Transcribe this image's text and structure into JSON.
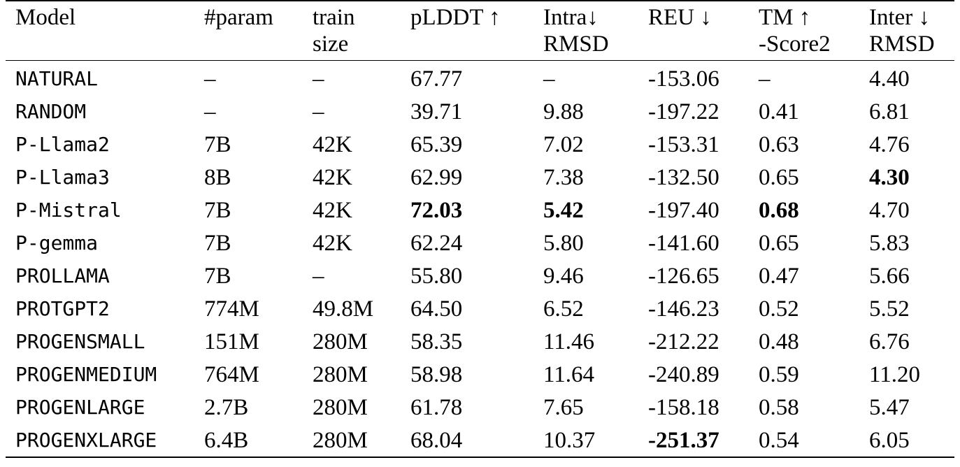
{
  "headers": [
    [
      "Model",
      ""
    ],
    [
      "#param",
      ""
    ],
    [
      "train",
      "size"
    ],
    [
      "pLDDT ↑",
      ""
    ],
    [
      "Intra↓",
      "RMSD"
    ],
    [
      "REU ↓",
      ""
    ],
    [
      "TM ↑",
      "-Score2"
    ],
    [
      "Inter ↓",
      "RMSD"
    ]
  ],
  "rows": [
    [
      "NATURAL",
      "–",
      "–",
      "67.77",
      "–",
      "-153.06",
      "–",
      "4.40"
    ],
    [
      "RANDOM",
      "–",
      "–",
      "39.71",
      "9.88",
      "-197.22",
      "0.41",
      "6.81"
    ],
    [
      "P-Llama2",
      "7B",
      "42K",
      "65.39",
      "7.02",
      "-153.31",
      "0.63",
      "4.76"
    ],
    [
      "P-Llama3",
      "8B",
      "42K",
      "62.99",
      "7.38",
      "-132.50",
      "0.65",
      "4.30"
    ],
    [
      "P-Mistral",
      "7B",
      "42K",
      "72.03",
      "5.42",
      "-197.40",
      "0.68",
      "4.70"
    ],
    [
      "P-gemma",
      "7B",
      "42K",
      "62.24",
      "5.80",
      "-141.60",
      "0.65",
      "5.83"
    ],
    [
      "PROLLAMA",
      "7B",
      "–",
      "55.80",
      "9.46",
      "-126.65",
      "0.47",
      "5.66"
    ],
    [
      "PROTGPT2",
      "774M",
      "49.8M",
      "64.50",
      "6.52",
      "-146.23",
      "0.52",
      "5.52"
    ],
    [
      "PROGENSMALL",
      "151M",
      "280M",
      "58.35",
      "11.46",
      "-212.22",
      "0.48",
      "6.76"
    ],
    [
      "PROGENMEDIUM",
      "764M",
      "280M",
      "58.98",
      "11.64",
      "-240.89",
      "0.59",
      "11.20"
    ],
    [
      "PROGENLARGE",
      "2.7B",
      "280M",
      "61.78",
      "7.65",
      "-158.18",
      "0.58",
      "5.47"
    ],
    [
      "PROGENXLARGE",
      "6.4B",
      "280M",
      "68.04",
      "10.37",
      "-251.37",
      "0.54",
      "6.05"
    ]
  ],
  "bold_cells": [
    [
      3,
      7
    ],
    [
      4,
      3
    ],
    [
      4,
      4
    ],
    [
      4,
      6
    ],
    [
      11,
      5
    ]
  ]
}
